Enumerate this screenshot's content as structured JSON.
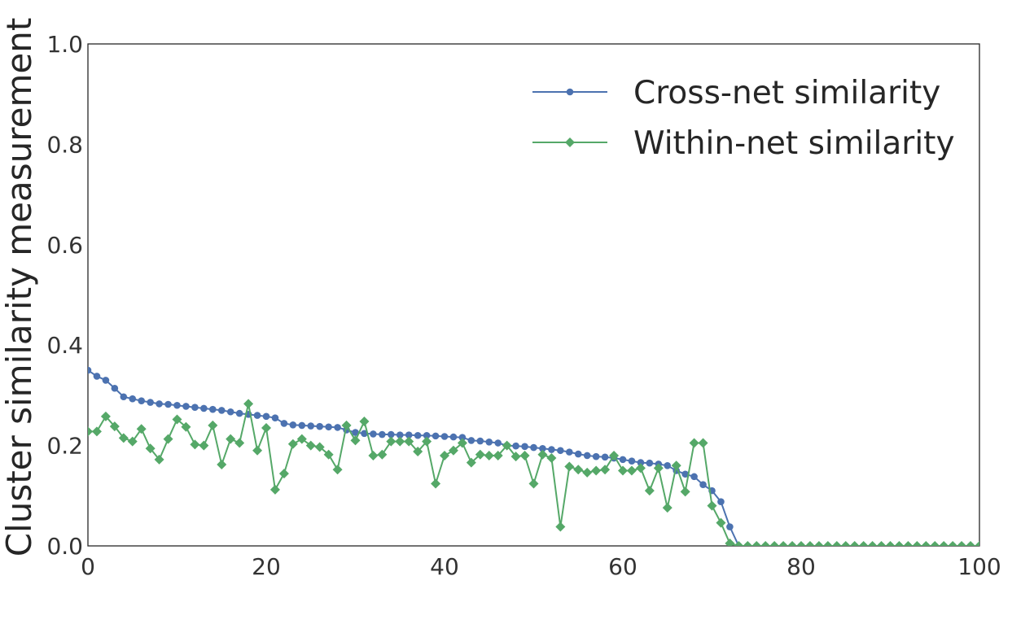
{
  "chart_data": {
    "type": "line",
    "title": "",
    "xlabel": "",
    "ylabel": "Cluster similarity measurement",
    "xlim": [
      0,
      100
    ],
    "ylim": [
      0.0,
      1.0
    ],
    "xticks": [
      0,
      20,
      40,
      60,
      80,
      100
    ],
    "yticks": [
      0.0,
      0.2,
      0.4,
      0.6,
      0.8,
      1.0
    ],
    "ytick_labels": [
      "0.0",
      "0.2",
      "0.4",
      "0.6",
      "0.8",
      "1.0"
    ],
    "grid": false,
    "legend_position": "top-right",
    "series": [
      {
        "name": "Cross-net similarity",
        "color": "#4c72b0",
        "marker": "circle",
        "values": [
          0.35,
          0.338,
          0.33,
          0.314,
          0.297,
          0.293,
          0.289,
          0.286,
          0.283,
          0.282,
          0.28,
          0.278,
          0.276,
          0.274,
          0.272,
          0.27,
          0.267,
          0.264,
          0.262,
          0.26,
          0.258,
          0.255,
          0.244,
          0.241,
          0.24,
          0.239,
          0.238,
          0.237,
          0.236,
          0.231,
          0.226,
          0.224,
          0.223,
          0.222,
          0.222,
          0.221,
          0.221,
          0.22,
          0.22,
          0.219,
          0.218,
          0.217,
          0.216,
          0.21,
          0.209,
          0.207,
          0.205,
          0.2,
          0.199,
          0.198,
          0.196,
          0.194,
          0.192,
          0.19,
          0.187,
          0.183,
          0.18,
          0.178,
          0.177,
          0.175,
          0.172,
          0.169,
          0.166,
          0.165,
          0.163,
          0.16,
          0.15,
          0.143,
          0.138,
          0.122,
          0.11,
          0.088,
          0.038,
          0.0,
          0.0,
          0.0,
          0.0,
          0.0,
          0.0,
          0.0,
          0.0,
          0.0,
          0.0,
          0.0,
          0.0,
          0.0,
          0.0,
          0.0,
          0.0,
          0.0,
          0.0,
          0.0,
          0.0,
          0.0,
          0.0,
          0.0,
          0.0,
          0.0,
          0.0,
          0.0,
          0.0
        ]
      },
      {
        "name": "Within-net similarity",
        "color": "#55a868",
        "marker": "diamond",
        "values": [
          0.228,
          0.228,
          0.258,
          0.238,
          0.215,
          0.208,
          0.233,
          0.194,
          0.172,
          0.213,
          0.252,
          0.237,
          0.202,
          0.2,
          0.24,
          0.162,
          0.213,
          0.205,
          0.283,
          0.19,
          0.235,
          0.112,
          0.144,
          0.203,
          0.213,
          0.2,
          0.197,
          0.182,
          0.152,
          0.24,
          0.21,
          0.248,
          0.18,
          0.182,
          0.208,
          0.208,
          0.208,
          0.188,
          0.208,
          0.124,
          0.18,
          0.19,
          0.205,
          0.166,
          0.182,
          0.18,
          0.18,
          0.2,
          0.178,
          0.18,
          0.124,
          0.182,
          0.175,
          0.038,
          0.158,
          0.152,
          0.146,
          0.15,
          0.152,
          0.18,
          0.15,
          0.15,
          0.155,
          0.11,
          0.155,
          0.076,
          0.16,
          0.108,
          0.205,
          0.205,
          0.08,
          0.046,
          0.005,
          0.0,
          0.0,
          0.0,
          0.0,
          0.0,
          0.0,
          0.0,
          0.0,
          0.0,
          0.0,
          0.0,
          0.0,
          0.0,
          0.0,
          0.0,
          0.0,
          0.0,
          0.0,
          0.0,
          0.0,
          0.0,
          0.0,
          0.0,
          0.0,
          0.0,
          0.0,
          0.0,
          0.0
        ]
      }
    ]
  }
}
